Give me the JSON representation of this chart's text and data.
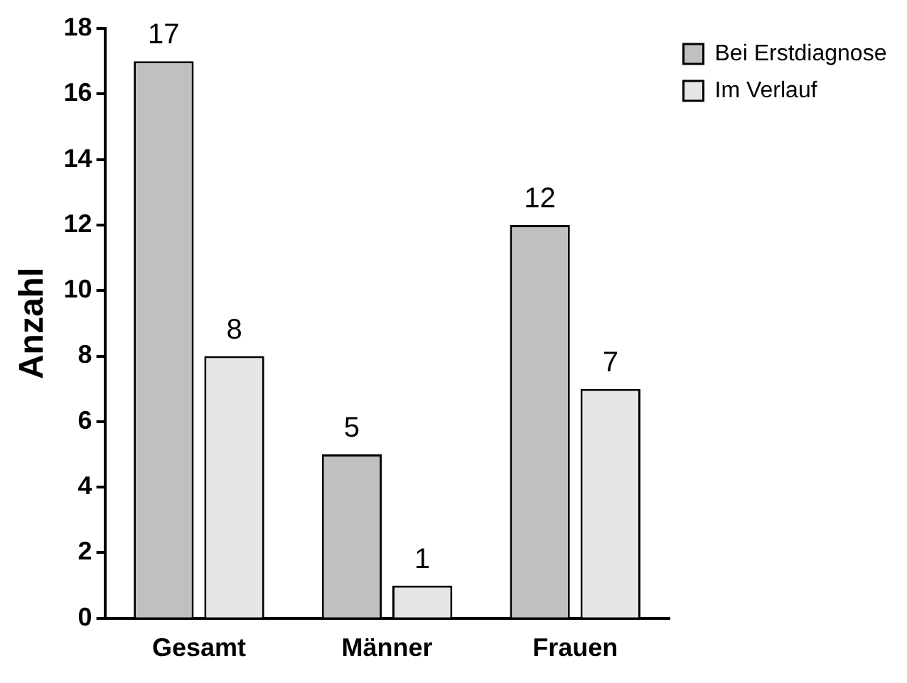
{
  "chart_data": {
    "type": "bar",
    "ylabel": "Anzahl",
    "categories": [
      "Gesamt",
      "Männer",
      "Frauen"
    ],
    "series": [
      {
        "name": "Bei Erstdiagnose",
        "color": "#c0c0c0",
        "values": [
          17,
          5,
          12
        ]
      },
      {
        "name": "Im Verlauf",
        "color": "#e6e6e6",
        "values": [
          8,
          1,
          7
        ]
      }
    ],
    "ylim": [
      0,
      18
    ],
    "yticks": [
      0,
      2,
      4,
      6,
      8,
      10,
      12,
      14,
      16,
      18
    ],
    "grid": false,
    "legend": "top right",
    "data_labels": true
  }
}
